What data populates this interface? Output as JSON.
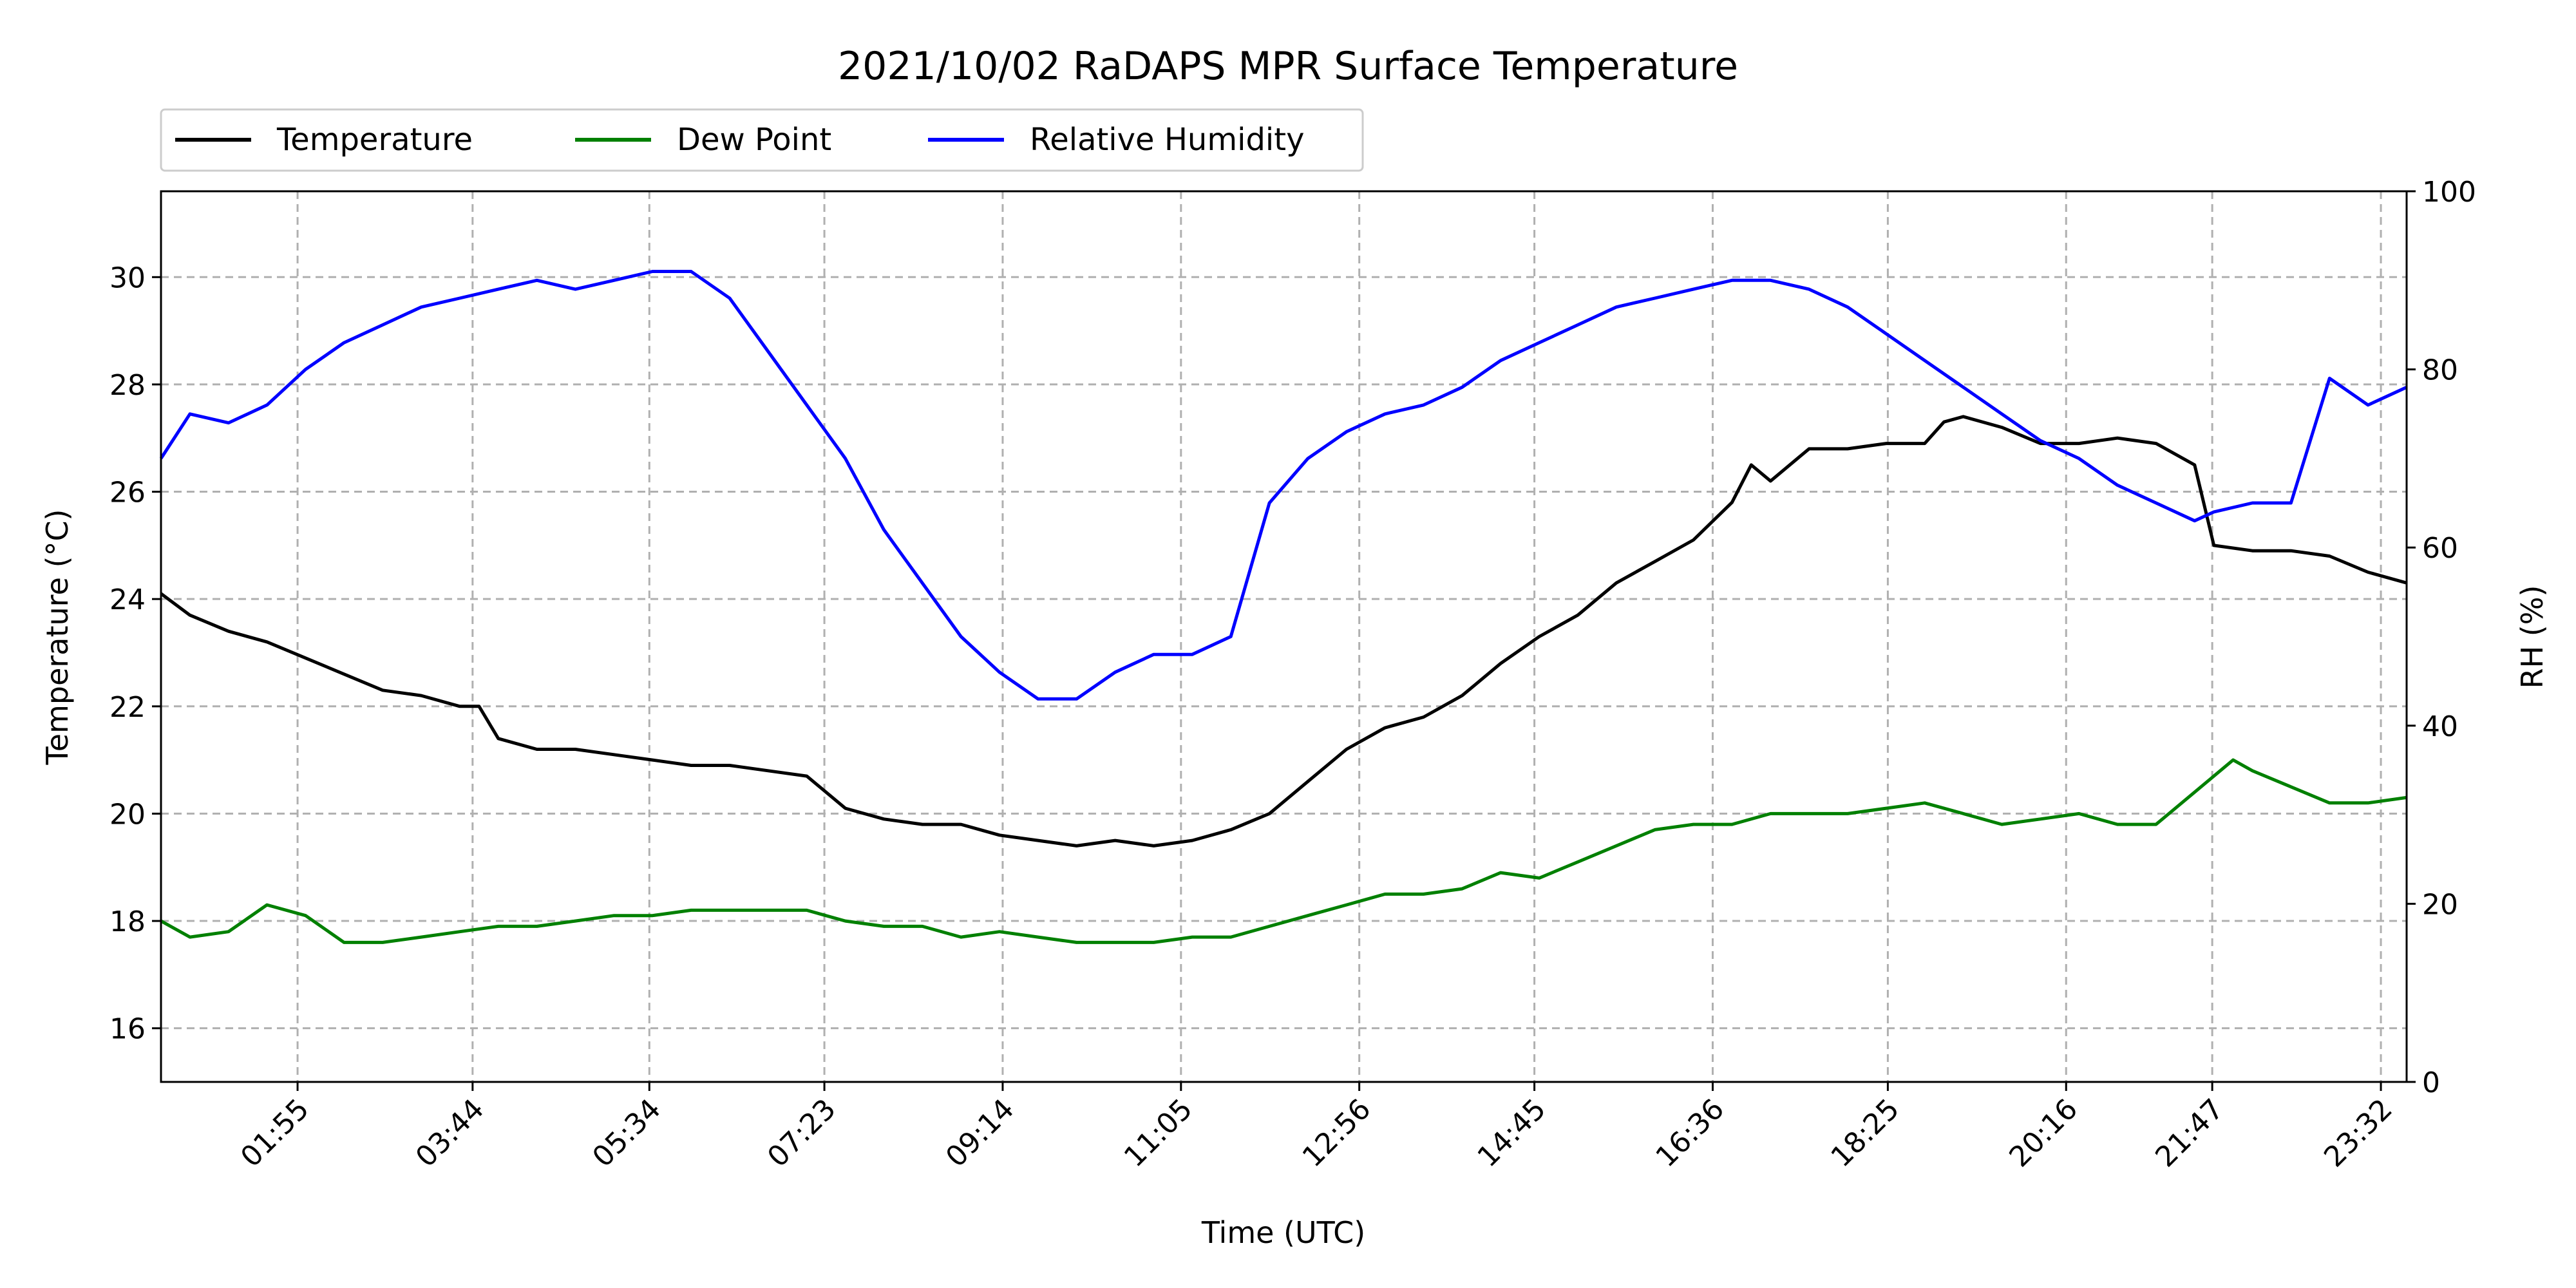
{
  "chart_data": {
    "type": "line",
    "title": "2021/10/02 RaDAPS MPR Surface Temperature",
    "xlabel": "Time (UTC)",
    "ylabel_left": "Temperature ($^\\circ$C)",
    "ylabel_left_display": "Temperature (°C)",
    "ylabel_right": "RH (%)",
    "x_tick_labels": [
      "01:55",
      "03:44",
      "05:34",
      "07:23",
      "09:14",
      "11:05",
      "12:56",
      "14:45",
      "16:36",
      "18:25",
      "20:16",
      "21:47",
      "23:32"
    ],
    "x_tick_hours": [
      1.917,
      3.733,
      5.567,
      7.383,
      9.233,
      11.083,
      12.933,
      14.75,
      16.6,
      18.417,
      20.267,
      21.783,
      23.533
    ],
    "xlim_hours": [
      0.5,
      23.8
    ],
    "ylim_left": [
      15,
      31.6
    ],
    "ylim_right": [
      0,
      100
    ],
    "left_ticks": [
      16,
      18,
      20,
      22,
      24,
      26,
      28,
      30
    ],
    "right_ticks": [
      0,
      20,
      40,
      60,
      80,
      100
    ],
    "grid": true,
    "legend_placement": "top-left, above plot",
    "series": [
      {
        "name": "Temperature",
        "axis": "left",
        "color": "#000000",
        "x": [
          0.5,
          0.8,
          1.2,
          1.6,
          2.0,
          2.4,
          2.8,
          3.2,
          3.6,
          3.8,
          4.0,
          4.4,
          4.8,
          5.2,
          5.6,
          6.0,
          6.4,
          6.8,
          7.2,
          7.6,
          8.0,
          8.4,
          8.8,
          9.2,
          9.6,
          10.0,
          10.4,
          10.8,
          11.2,
          11.6,
          12.0,
          12.4,
          12.8,
          13.2,
          13.6,
          14.0,
          14.4,
          14.8,
          15.2,
          15.6,
          16.0,
          16.4,
          16.8,
          17.0,
          17.2,
          17.6,
          18.0,
          18.4,
          18.8,
          19.0,
          19.2,
          19.6,
          20.0,
          20.4,
          20.8,
          21.2,
          21.6,
          21.8,
          22.2,
          22.6,
          23.0,
          23.4,
          23.8
        ],
        "y": [
          24.1,
          23.7,
          23.4,
          23.2,
          22.9,
          22.6,
          22.3,
          22.2,
          22.0,
          22.0,
          21.4,
          21.2,
          21.2,
          21.1,
          21.0,
          20.9,
          20.9,
          20.8,
          20.7,
          20.1,
          19.9,
          19.8,
          19.8,
          19.6,
          19.5,
          19.4,
          19.5,
          19.4,
          19.5,
          19.7,
          20.0,
          20.6,
          21.2,
          21.6,
          21.8,
          22.2,
          22.8,
          23.3,
          23.7,
          24.3,
          24.7,
          25.1,
          25.8,
          26.5,
          26.2,
          26.8,
          26.8,
          26.9,
          26.9,
          27.3,
          27.4,
          27.2,
          26.9,
          26.9,
          27.0,
          26.9,
          26.5,
          25.0,
          24.9,
          24.9,
          24.8,
          24.5,
          24.3
        ]
      },
      {
        "name": "Dew Point",
        "axis": "left",
        "color": "#008000",
        "x": [
          0.5,
          0.8,
          1.2,
          1.6,
          2.0,
          2.4,
          2.8,
          3.2,
          3.6,
          4.0,
          4.4,
          4.8,
          5.2,
          5.6,
          6.0,
          6.4,
          6.8,
          7.2,
          7.6,
          8.0,
          8.4,
          8.8,
          9.2,
          9.6,
          10.0,
          10.4,
          10.8,
          11.2,
          11.6,
          12.0,
          12.4,
          12.8,
          13.2,
          13.6,
          14.0,
          14.4,
          14.8,
          15.2,
          15.6,
          16.0,
          16.4,
          16.8,
          17.2,
          17.6,
          18.0,
          18.4,
          18.8,
          19.2,
          19.6,
          20.0,
          20.4,
          20.8,
          21.2,
          21.6,
          21.8,
          22.0,
          22.2,
          22.6,
          23.0,
          23.4,
          23.8
        ],
        "y": [
          18.0,
          17.7,
          17.8,
          18.3,
          18.1,
          17.6,
          17.6,
          17.7,
          17.8,
          17.9,
          17.9,
          18.0,
          18.1,
          18.1,
          18.2,
          18.2,
          18.2,
          18.2,
          18.0,
          17.9,
          17.9,
          17.7,
          17.8,
          17.7,
          17.6,
          17.6,
          17.6,
          17.7,
          17.7,
          17.9,
          18.1,
          18.3,
          18.5,
          18.5,
          18.6,
          18.9,
          18.8,
          19.1,
          19.4,
          19.7,
          19.8,
          19.8,
          20.0,
          20.0,
          20.0,
          20.1,
          20.2,
          20.0,
          19.8,
          19.9,
          20.0,
          19.8,
          19.8,
          20.4,
          20.7,
          21.0,
          20.8,
          20.5,
          20.2,
          20.2,
          20.3
        ]
      },
      {
        "name": "Relative Humidity",
        "axis": "right",
        "color": "#0000ff",
        "x": [
          0.5,
          0.8,
          1.2,
          1.6,
          2.0,
          2.4,
          2.8,
          3.2,
          3.6,
          4.0,
          4.4,
          4.8,
          5.2,
          5.6,
          6.0,
          6.4,
          6.8,
          7.2,
          7.6,
          8.0,
          8.4,
          8.8,
          9.2,
          9.6,
          10.0,
          10.4,
          10.8,
          11.2,
          11.6,
          12.0,
          12.4,
          12.8,
          13.2,
          13.6,
          14.0,
          14.4,
          14.8,
          15.2,
          15.6,
          16.0,
          16.4,
          16.8,
          17.2,
          17.6,
          18.0,
          18.4,
          18.8,
          19.2,
          19.6,
          20.0,
          20.4,
          20.8,
          21.2,
          21.6,
          21.8,
          22.2,
          22.6,
          23.0,
          23.4,
          23.8
        ],
        "y": [
          70,
          75,
          74,
          76,
          80,
          83,
          85,
          87,
          88,
          89,
          90,
          89,
          90,
          91,
          91,
          88,
          82,
          76,
          70,
          62,
          56,
          50,
          46,
          43,
          43,
          46,
          48,
          48,
          50,
          65,
          70,
          73,
          75,
          76,
          78,
          81,
          83,
          85,
          87,
          88,
          89,
          90,
          90,
          89,
          87,
          84,
          81,
          78,
          75,
          72,
          70,
          67,
          65,
          63,
          64,
          65,
          65,
          79,
          76,
          78
        ]
      }
    ]
  }
}
